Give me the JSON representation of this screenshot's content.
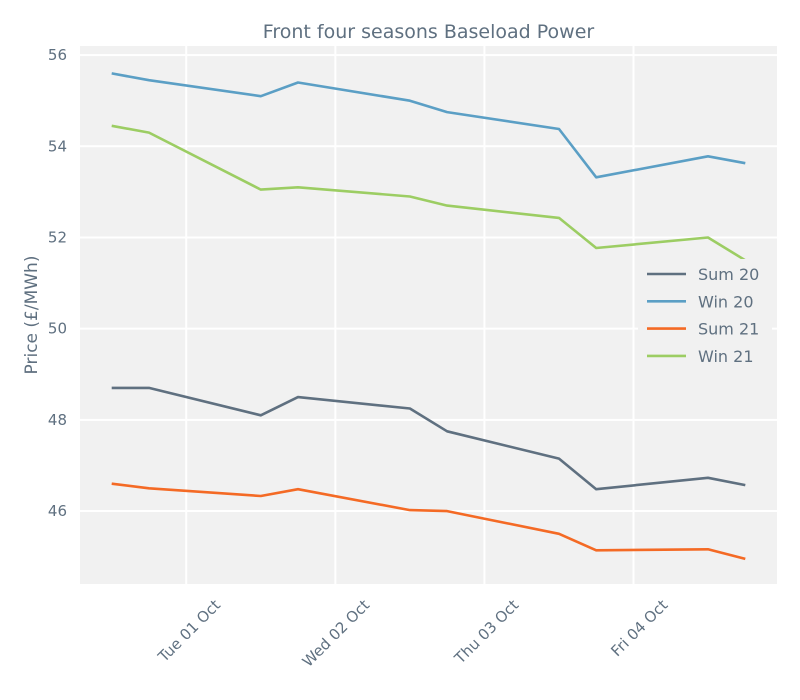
{
  "chart_data": {
    "type": "line",
    "title": "Front four seasons Baseload Power",
    "xlabel": "",
    "ylabel": "Price (£/MWh)",
    "x": [
      "2019-09-30T12:00",
      "2019-09-30T18:00",
      "2019-10-01T12:00",
      "2019-10-01T18:00",
      "2019-10-02T12:00",
      "2019-10-02T18:00",
      "2019-10-03T12:00",
      "2019-10-03T18:00",
      "2019-10-04T12:00",
      "2019-10-04T18:00"
    ],
    "x_ticks": [
      "Tue 01 Oct",
      "Wed 02 Oct",
      "Thu 03 Oct",
      "Fri 04 Oct"
    ],
    "ylim": [
      44.4,
      56.2
    ],
    "y_ticks": [
      46,
      48,
      50,
      52,
      54,
      56
    ],
    "grid": true,
    "legend_position": "right",
    "series": [
      {
        "name": "Sum 20",
        "color": "#5f7080",
        "values": [
          48.7,
          48.7,
          48.1,
          48.5,
          48.25,
          47.75,
          47.15,
          46.48,
          46.73,
          46.57
        ]
      },
      {
        "name": "Win 20",
        "color": "#5b9fc5",
        "values": [
          55.6,
          55.45,
          55.1,
          55.4,
          55.0,
          54.75,
          54.38,
          53.32,
          53.78,
          53.63
        ]
      },
      {
        "name": "Sum 21",
        "color": "#f46a25",
        "values": [
          46.6,
          46.5,
          46.33,
          46.48,
          46.02,
          46.0,
          45.5,
          45.14,
          45.16,
          44.95
        ]
      },
      {
        "name": "Win 21",
        "color": "#9ccd63",
        "values": [
          54.45,
          54.3,
          53.05,
          53.1,
          52.9,
          52.7,
          52.43,
          51.77,
          52.0,
          51.5
        ]
      }
    ]
  }
}
